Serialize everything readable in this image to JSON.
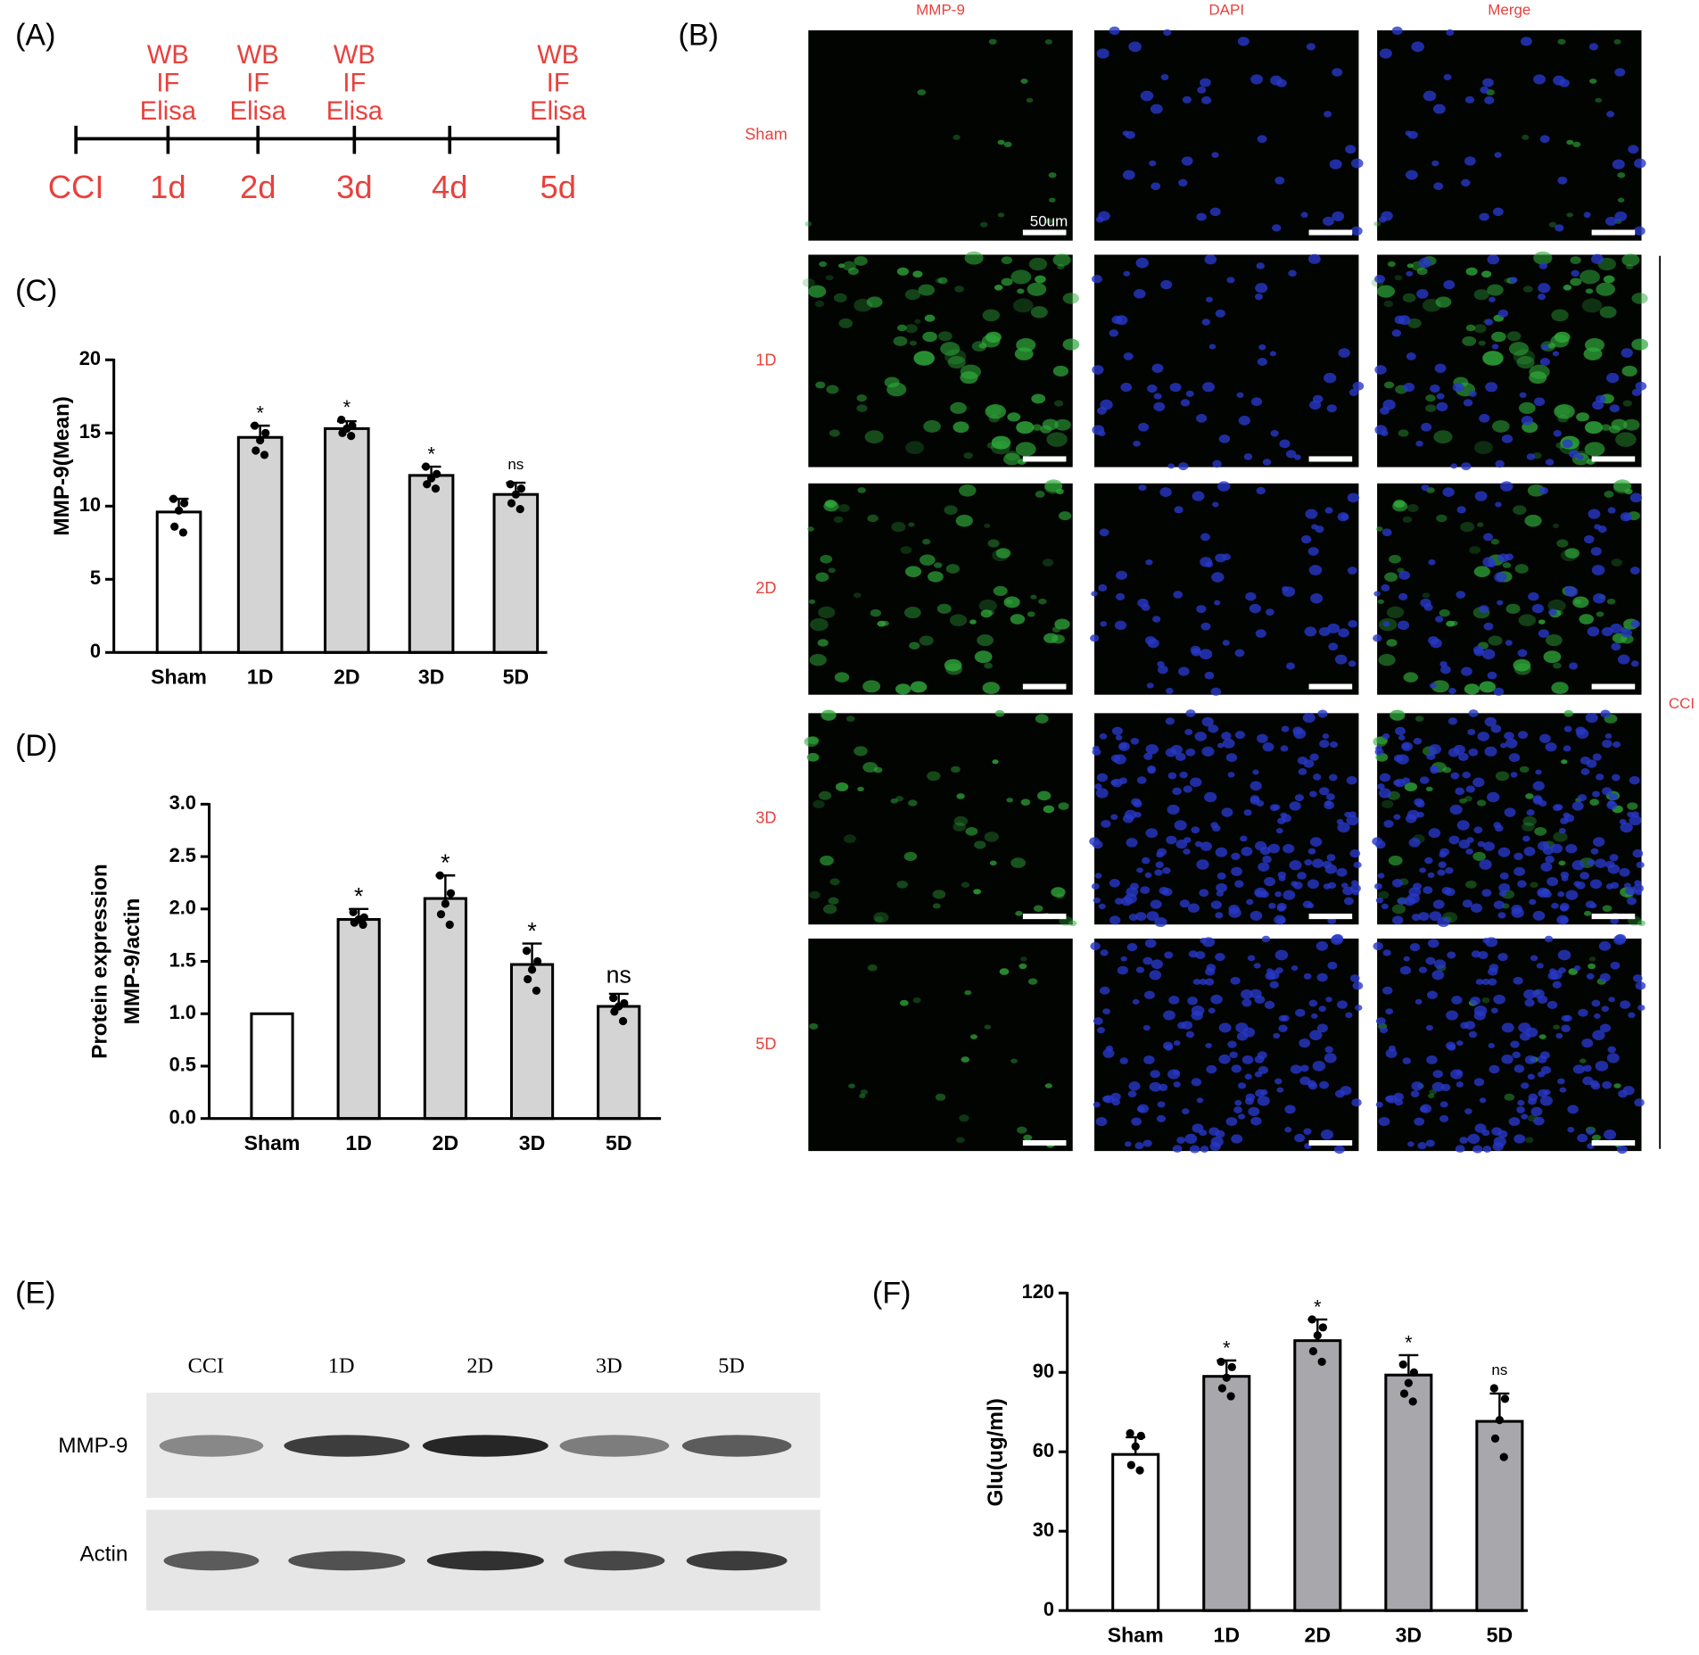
{
  "timeline": {
    "panel_label": "(A)",
    "points": [
      {
        "label": "CCI",
        "assays": []
      },
      {
        "label": "1d",
        "assays": [
          "WB",
          "IF",
          "Elisa"
        ]
      },
      {
        "label": "2d",
        "assays": [
          "WB",
          "IF",
          "Elisa"
        ]
      },
      {
        "label": "3d",
        "assays": [
          "WB",
          "IF",
          "Elisa"
        ]
      },
      {
        "label": "4d",
        "assays": []
      },
      {
        "label": "5d",
        "assays": [
          "WB",
          "IF",
          "Elisa"
        ]
      }
    ]
  },
  "microscopy": {
    "panel_label": "(B)",
    "columns": [
      "MMP-9",
      "DAPI",
      "Merge"
    ],
    "rows": [
      "Sham",
      "1D",
      "2D",
      "3D",
      "5D"
    ],
    "scale_bar": "50um",
    "group_label": "CCI"
  },
  "blot": {
    "panel_label": "(E)",
    "lanes": [
      "CCI",
      "1D",
      "2D",
      "3D",
      "5D"
    ],
    "rows": [
      "MMP-9",
      "Actin"
    ]
  },
  "chart_data": [
    {
      "type": "bar",
      "panel_label": "(C)",
      "y_label": [
        "MMP-9(Mean)"
      ],
      "categories": [
        "Sham",
        "1D",
        "2D",
        "3D",
        "5D"
      ],
      "values": [
        9.6,
        14.7,
        15.3,
        12.1,
        10.8
      ],
      "errors": [
        0.9,
        0.8,
        0.5,
        0.6,
        0.8
      ],
      "points": [
        [
          10.5,
          10.2,
          9.7,
          8.6,
          8.2
        ],
        [
          15.5,
          15.0,
          14.5,
          13.8,
          13.5
        ],
        [
          15.9,
          15.5,
          15.3,
          15.0,
          14.8
        ],
        [
          12.7,
          12.2,
          11.9,
          11.5,
          11.2
        ],
        [
          11.5,
          11.2,
          10.8,
          10.2,
          9.8
        ]
      ],
      "annotations": [
        null,
        "*",
        "*",
        "*",
        "ns"
      ],
      "colors": [
        "#ffffff",
        "#d4d4d4",
        "#d4d4d4",
        "#d4d4d4",
        "#d4d4d4"
      ],
      "ylim": [
        0,
        20
      ],
      "yticks": [
        0,
        5,
        10,
        15,
        20
      ]
    },
    {
      "type": "bar",
      "panel_label": "(D)",
      "y_label": [
        "Protein expression",
        "MMP-9/actin"
      ],
      "categories": [
        "Sham",
        "1D",
        "2D",
        "3D",
        "5D"
      ],
      "values": [
        1.0,
        1.9,
        2.1,
        1.47,
        1.07
      ],
      "errors": [
        null,
        0.1,
        0.22,
        0.2,
        0.12
      ],
      "points": [
        [],
        [
          1.97,
          1.92,
          1.9,
          1.87,
          1.85
        ],
        [
          2.32,
          2.15,
          2.05,
          1.95,
          1.85
        ],
        [
          1.6,
          1.5,
          1.42,
          1.33,
          1.22
        ],
        [
          1.15,
          1.1,
          1.07,
          1.02,
          0.93
        ]
      ],
      "annotations": [
        null,
        "*",
        "*",
        "*",
        "ns"
      ],
      "colors": [
        "#ffffff",
        "#d4d4d4",
        "#d4d4d4",
        "#d4d4d4",
        "#d4d4d4"
      ],
      "ylim": [
        0,
        3
      ],
      "yticks": [
        {
          "value": 0,
          "label": "0.0"
        },
        {
          "value": 0.5,
          "label": "0.5"
        },
        {
          "value": 1,
          "label": "1.0"
        },
        {
          "value": 1.5,
          "label": "1.5"
        },
        {
          "value": 2,
          "label": "2.0"
        },
        {
          "value": 2.5,
          "label": "2.5"
        },
        {
          "value": 3,
          "label": "3.0"
        }
      ]
    },
    {
      "type": "bar",
      "panel_label": "(F)",
      "y_label": [
        "Glu(ug/ml)"
      ],
      "categories": [
        "Sham",
        "1D",
        "2D",
        "3D",
        "5D"
      ],
      "values": [
        59,
        88.5,
        102,
        89,
        71.5
      ],
      "errors": [
        6.5,
        6,
        8,
        7.5,
        10.5
      ],
      "points": [
        [
          67,
          66,
          62,
          55,
          53
        ],
        [
          94,
          92,
          88,
          84,
          81
        ],
        [
          110,
          107,
          104,
          98,
          94
        ],
        [
          93,
          90,
          86,
          82,
          79
        ],
        [
          84,
          80,
          72,
          65,
          58
        ]
      ],
      "annotations": [
        null,
        "*",
        "*",
        "*",
        "ns"
      ],
      "colors": [
        "#ffffff",
        "#a8a8ac",
        "#a8a8ac",
        "#a8a8ac",
        "#a8a8ac"
      ],
      "ylim": [
        0,
        120
      ],
      "yticks": [
        0,
        30,
        60,
        90,
        120
      ]
    }
  ]
}
